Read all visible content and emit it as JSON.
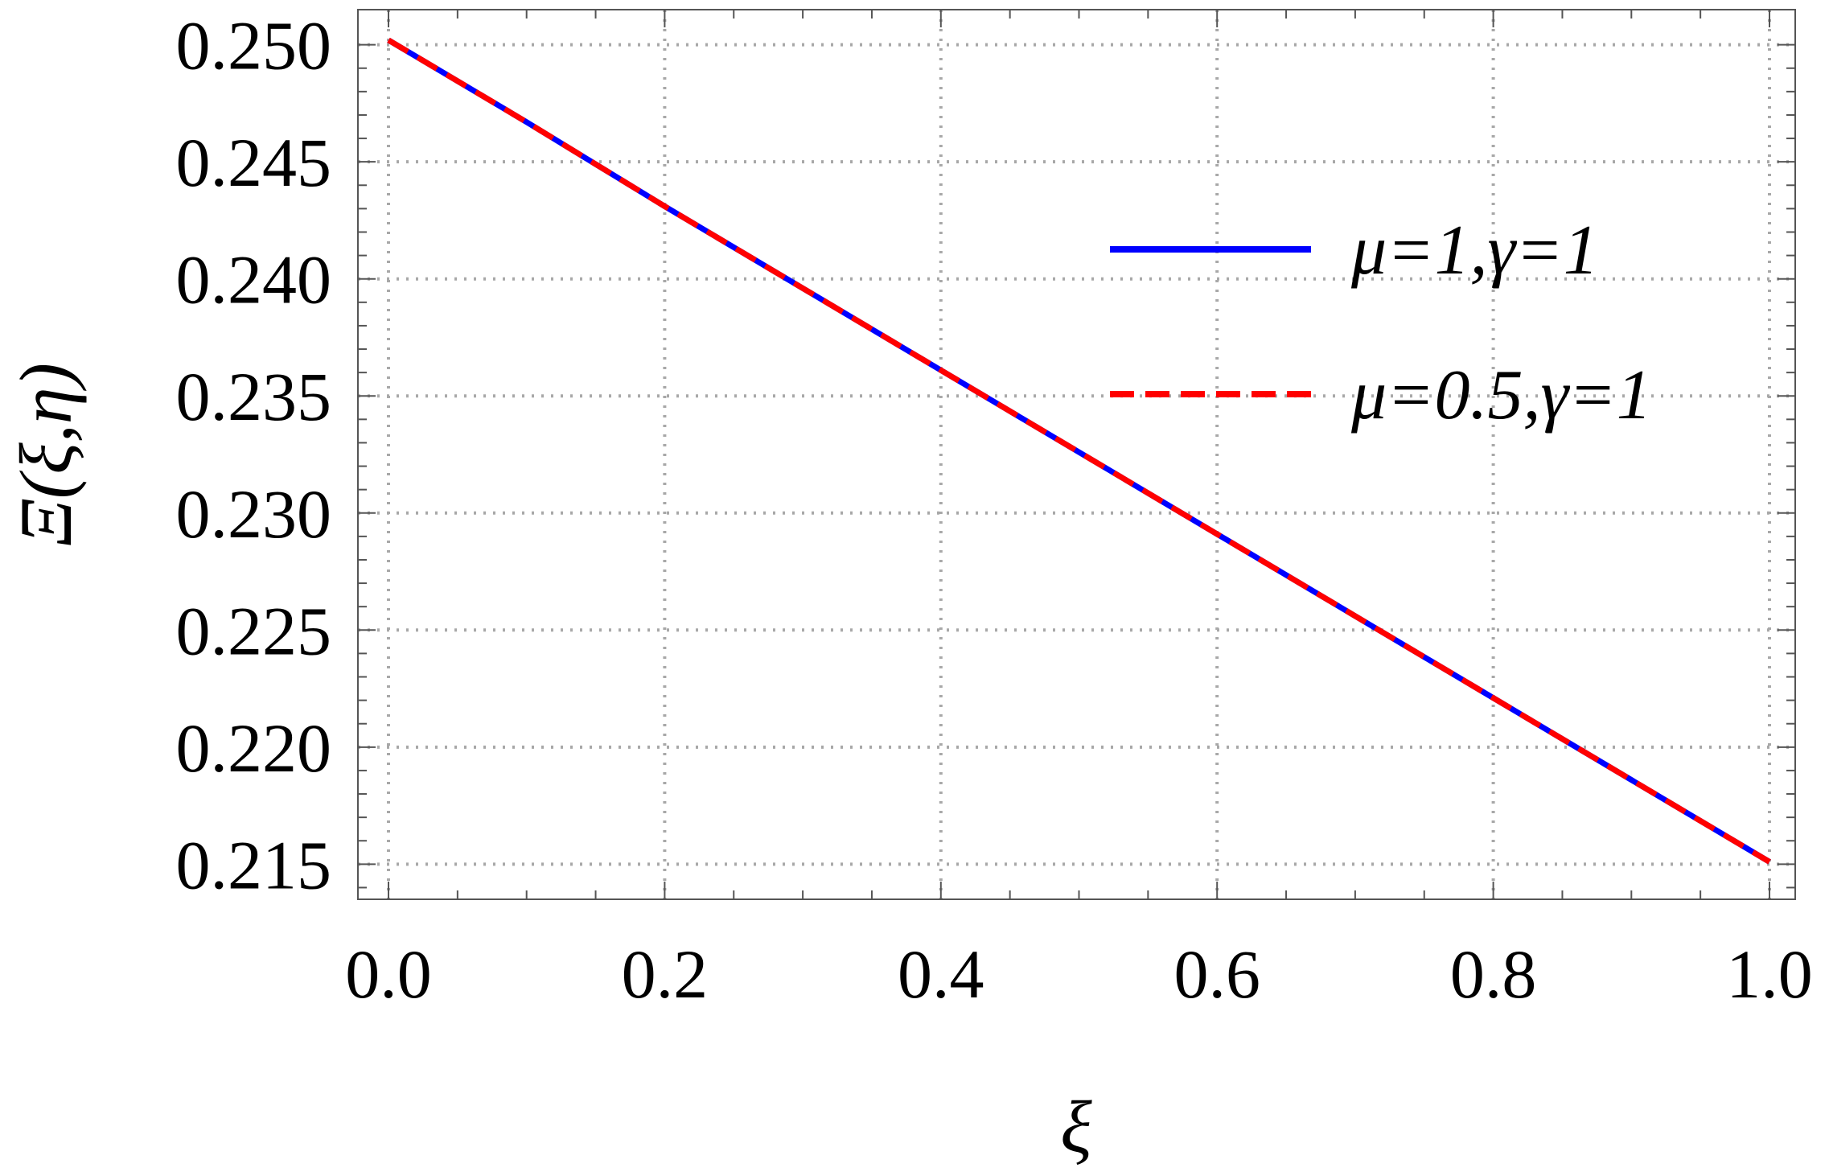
{
  "chart_data": {
    "type": "line",
    "title": "",
    "xlabel": "ξ",
    "ylabel": "Ξ(ξ,η)",
    "xlim": [
      0.0,
      1.0
    ],
    "ylim": [
      0.2135,
      0.2515
    ],
    "x_ticks": [
      "0.0",
      "0.2",
      "0.4",
      "0.6",
      "0.8",
      "1.0"
    ],
    "y_ticks": [
      "0.215",
      "0.220",
      "0.225",
      "0.230",
      "0.235",
      "0.240",
      "0.245",
      "0.250"
    ],
    "grid": true,
    "legend_position": "top-right",
    "series": [
      {
        "name": "μ=1,γ=1",
        "color": "#0000ff",
        "style": "solid",
        "x": [
          0.0,
          0.1,
          0.2,
          0.3,
          0.4,
          0.5,
          0.6,
          0.7,
          0.8,
          0.9,
          1.0
        ],
        "y": [
          0.2502,
          0.2467,
          0.2431,
          0.2396,
          0.2361,
          0.2326,
          0.2291,
          0.2256,
          0.2221,
          0.2186,
          0.2151
        ]
      },
      {
        "name": "μ=0.5,γ=1",
        "color": "#ff0000",
        "style": "dashed",
        "x": [
          0.0,
          0.1,
          0.2,
          0.3,
          0.4,
          0.5,
          0.6,
          0.7,
          0.8,
          0.9,
          1.0
        ],
        "y": [
          0.2502,
          0.2467,
          0.2431,
          0.2396,
          0.2361,
          0.2326,
          0.2291,
          0.2256,
          0.2221,
          0.2186,
          0.2151
        ]
      }
    ]
  }
}
